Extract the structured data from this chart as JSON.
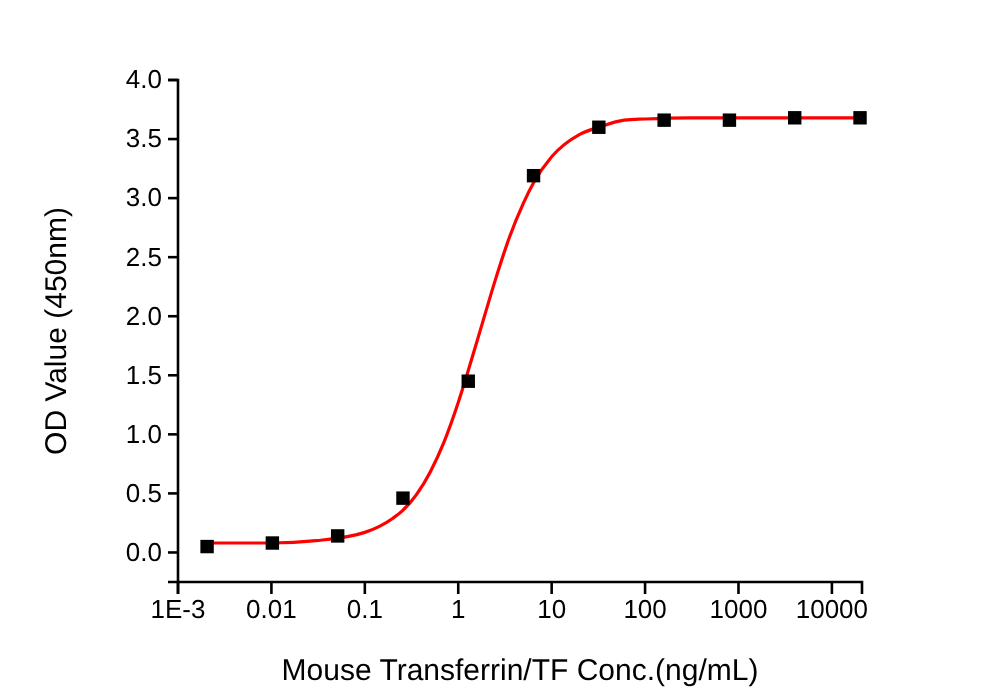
{
  "chart_data": {
    "type": "scatter",
    "xlabel": "Mouse Transferrin/TF Conc.(ng/mL)",
    "ylabel": "OD Value (450nm)",
    "log": "x",
    "marker": "square",
    "xlim": [
      0.001,
      21000
    ],
    "xticks": [
      {
        "value": 0.001,
        "label": "1E-3"
      },
      0.01,
      0.1,
      1,
      10,
      100,
      1000,
      10000
    ],
    "ylim": [
      -0.25,
      4.0
    ],
    "yticks": [
      {
        "value": 0,
        "label": "0.0"
      },
      0.5,
      {
        "value": 1,
        "label": "1.0"
      },
      1.5,
      {
        "value": 2,
        "label": "2.0"
      },
      2.5,
      {
        "value": 3,
        "label": "3.0"
      },
      3.5,
      {
        "value": 4,
        "label": "4.0"
      }
    ],
    "series": [
      {
        "color": "#000000",
        "x": [
          0.002048,
          0.01024,
          0.0512,
          0.256,
          1.28,
          6.4,
          32,
          160,
          800,
          4000,
          20000
        ],
        "values": [
          0.05,
          0.08,
          0.14,
          0.46,
          1.45,
          3.19,
          3.6,
          3.66,
          3.66,
          3.68,
          3.68
        ]
      },
      {
        "type": "line",
        "color": "#ff0000",
        "marker": "none",
        "x": [
          0.0018,
          0.01,
          0.03,
          0.1,
          0.2,
          0.25,
          0.5,
          0.7,
          1,
          1.28,
          1.72,
          2.5,
          3.5,
          5,
          6.4,
          10,
          20,
          32,
          60,
          100,
          300,
          1000,
          20000
        ],
        "values": [
          0.08,
          0.08,
          0.1,
          0.17,
          0.29,
          0.35,
          0.68,
          0.93,
          1.27,
          1.54,
          1.88,
          2.31,
          2.66,
          2.96,
          3.13,
          3.35,
          3.54,
          3.6,
          3.66,
          3.67,
          3.68,
          3.68,
          3.68
        ]
      }
    ]
  }
}
